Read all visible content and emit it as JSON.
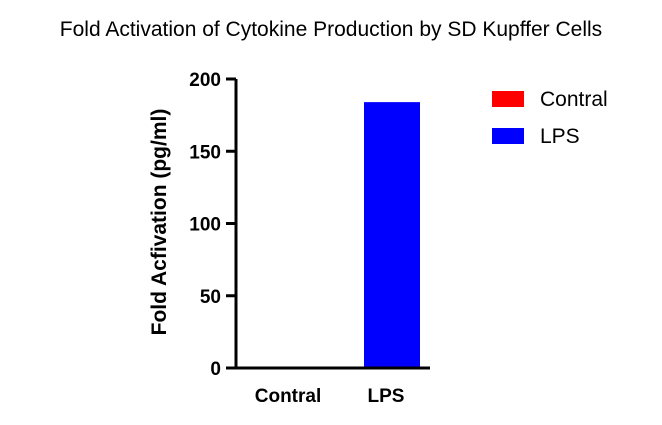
{
  "chart_data": {
    "type": "bar",
    "title": "Fold Activation of Cytokine Production by SD Kupffer Cells",
    "xlabel": "",
    "ylabel": "Fold Acfivation (pg/ml)",
    "categories": [
      "Contral",
      "LPS"
    ],
    "values": [
      0,
      184
    ],
    "colors": [
      "#ff0000",
      "#0000ff"
    ],
    "ylim": [
      0,
      200
    ],
    "yticks": [
      0,
      50,
      100,
      150,
      200
    ],
    "grid": false,
    "legend": {
      "placement": "right",
      "entries": [
        {
          "label": "Contral",
          "color": "#ff0000"
        },
        {
          "label": "LPS",
          "color": "#0000ff"
        }
      ]
    }
  }
}
